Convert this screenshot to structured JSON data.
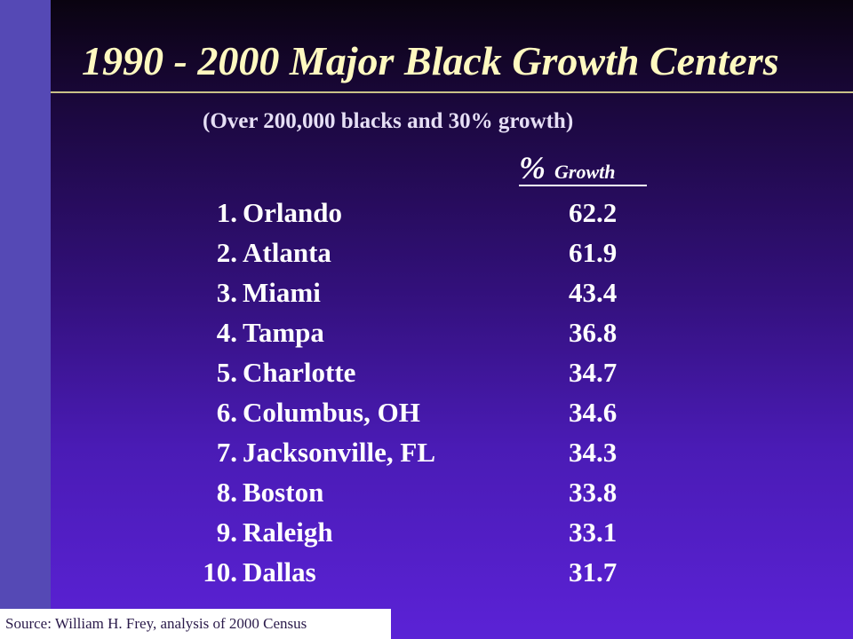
{
  "slide": {
    "title": "1990 - 2000 Major Black Growth Centers",
    "subtitle": "(Over 200,000 blacks and 30% growth)",
    "column_header": {
      "symbol": "%",
      "label": "Growth"
    },
    "rows": [
      {
        "rank": "1.",
        "city": "Orlando",
        "growth": "62.2"
      },
      {
        "rank": "2.",
        "city": "Atlanta",
        "growth": "61.9"
      },
      {
        "rank": "3.",
        "city": "Miami",
        "growth": "43.4"
      },
      {
        "rank": "4.",
        "city": "Tampa",
        "growth": "36.8"
      },
      {
        "rank": "5.",
        "city": "Charlotte",
        "growth": "34.7"
      },
      {
        "rank": "6.",
        "city": "Columbus, OH",
        "growth": "34.6"
      },
      {
        "rank": "7.",
        "city": "Jacksonville, FL",
        "growth": "34.3"
      },
      {
        "rank": "8.",
        "city": "Boston",
        "growth": "33.8"
      },
      {
        "rank": "9.",
        "city": "Raleigh",
        "growth": "33.1"
      },
      {
        "rank": "10.",
        "city": "Dallas",
        "growth": "31.7"
      }
    ],
    "source": "Source: William H. Frey, analysis of 2000 Census"
  },
  "colors": {
    "title": "#fff9c0",
    "side_bar": "#5549b5",
    "background_top": "#0a0310",
    "background_bottom": "#5b22d6"
  }
}
